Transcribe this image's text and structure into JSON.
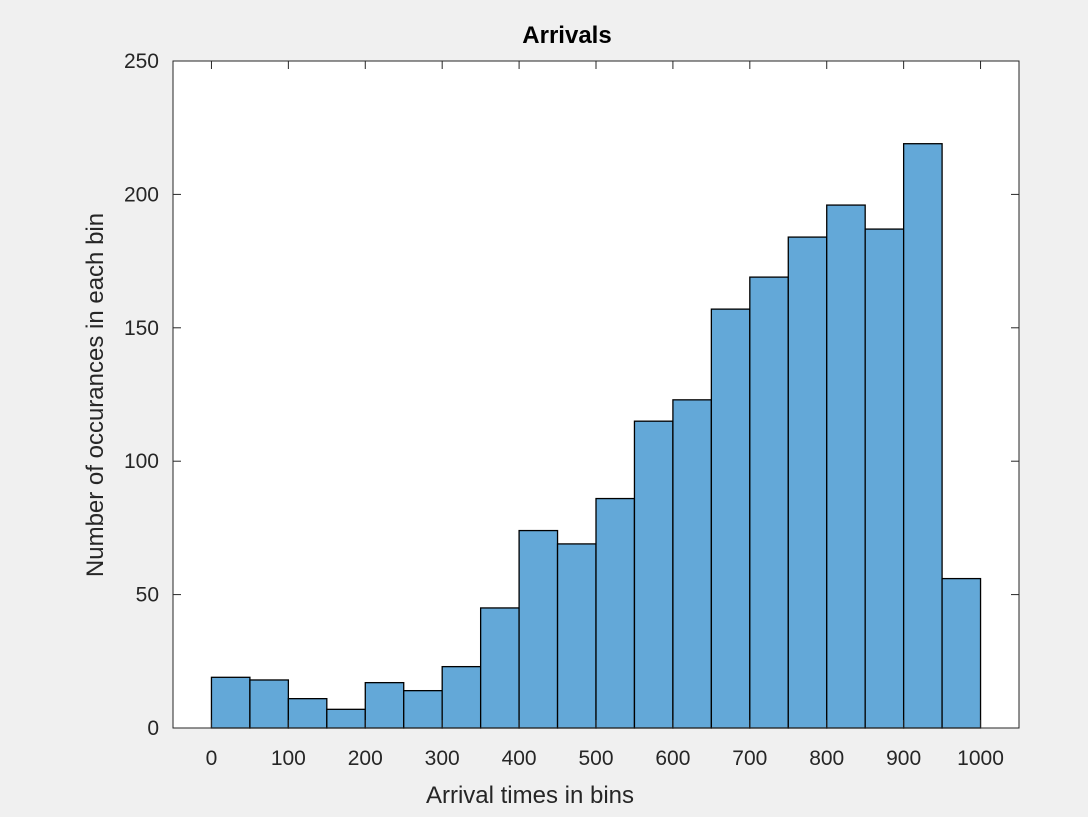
{
  "figure": {
    "background": "#f0f0f0"
  },
  "chart_data": {
    "type": "bar",
    "title": "Arrivals",
    "xlabel": "Arrival times in bins",
    "ylabel": "Number of occurances in each bin",
    "xlim": [
      -50,
      1050
    ],
    "ylim": [
      0,
      250
    ],
    "xticks": [
      0,
      100,
      200,
      300,
      400,
      500,
      600,
      700,
      800,
      900,
      1000
    ],
    "xtick_labels": [
      "0",
      "100",
      "200",
      "300",
      "400",
      "500",
      "600",
      "700",
      "800",
      "900",
      "1000"
    ],
    "yticks": [
      0,
      50,
      100,
      150,
      200,
      250
    ],
    "ytick_labels": [
      "0",
      "50",
      "100",
      "150",
      "200",
      "250"
    ],
    "bin_edges": [
      0,
      50,
      100,
      150,
      200,
      250,
      300,
      350,
      400,
      450,
      500,
      550,
      600,
      650,
      700,
      750,
      800,
      850,
      900,
      950,
      1000
    ],
    "values": [
      19,
      18,
      11,
      7,
      17,
      14,
      23,
      45,
      74,
      69,
      86,
      115,
      123,
      157,
      169,
      184,
      196,
      187,
      219,
      56
    ],
    "bar_color": "#63a8d8",
    "edge_color": "#000000",
    "grid": false,
    "legend": "none"
  }
}
